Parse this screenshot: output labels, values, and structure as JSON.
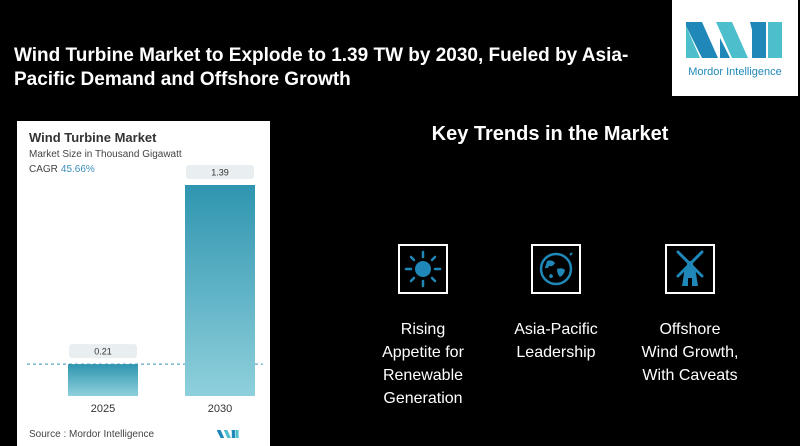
{
  "headline": "Wind Turbine Market to Explode to 1.39 TW by 2030, Fueled by Asia-Pacific Demand and Offshore Growth",
  "brand": {
    "name": "Mordor Intelligence",
    "color": "#1f88b8",
    "accent": "#4dbfcc"
  },
  "card": {
    "title": "Wind Turbine Market",
    "subtitle": "Market Size in Thousand Gigawatt",
    "cagr_label": "CAGR",
    "cagr_value": "45.66%",
    "source": "Source :  Mordor Intelligence"
  },
  "chart_data": {
    "type": "bar",
    "title": "Wind Turbine Market",
    "ylabel": "Market Size in Thousand Gigawatt",
    "categories": [
      "2025",
      "2030"
    ],
    "values": [
      0.21,
      1.39
    ],
    "data_labels": [
      "0.21",
      "1.39"
    ],
    "grid": false,
    "bar_color_top": "#2f95b0",
    "bar_color_bottom": "#8fd0dc"
  },
  "trends": {
    "title": "Key Trends in the Market",
    "items": [
      {
        "icon": "sun-icon",
        "label_lines": [
          "Rising",
          "Appetite for",
          "Renewable",
          "Generation"
        ]
      },
      {
        "icon": "globe-icon",
        "label_lines": [
          "Asia-Pacific",
          "Leadership"
        ]
      },
      {
        "icon": "windmill-icon",
        "label_lines": [
          "Offshore",
          "Wind Growth,",
          "With Caveats"
        ]
      }
    ]
  }
}
